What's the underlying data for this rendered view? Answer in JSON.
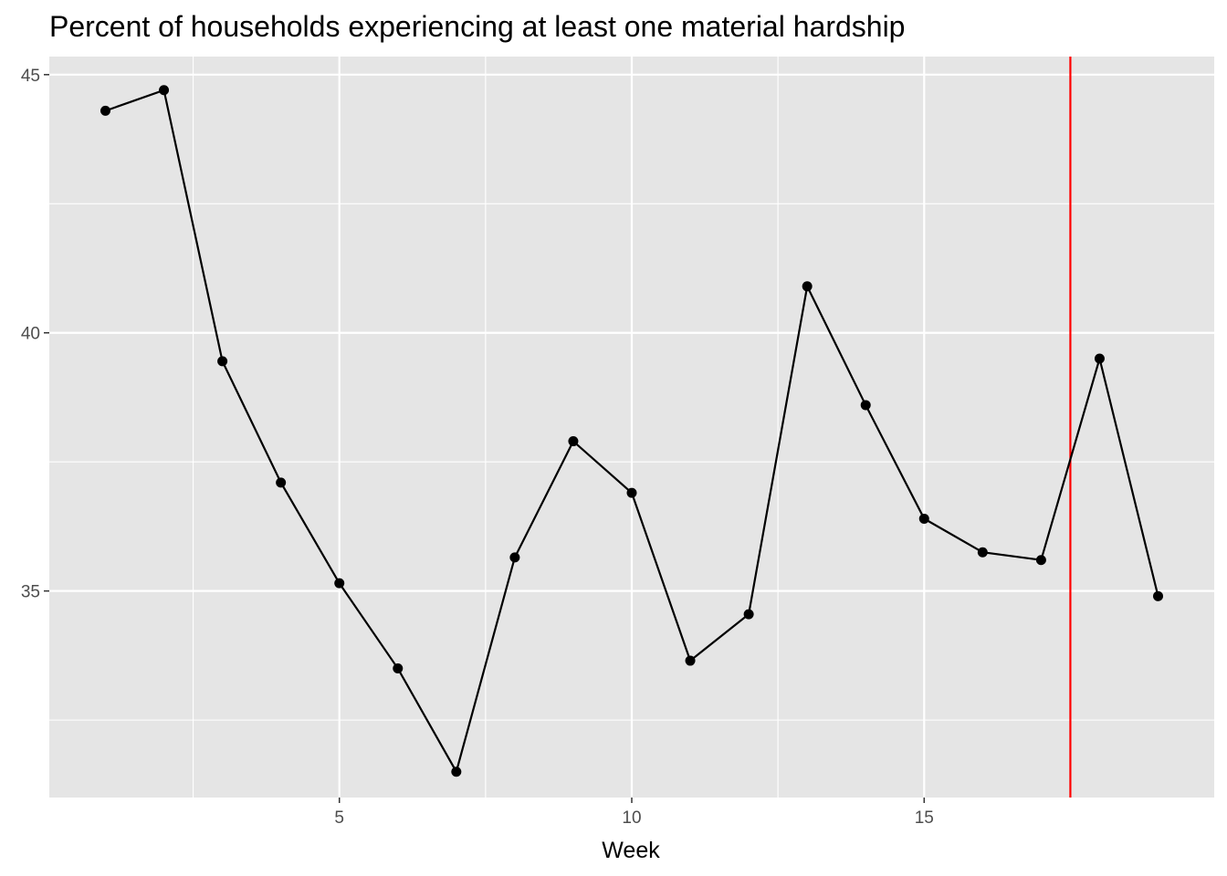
{
  "chart_data": {
    "type": "line",
    "title": "Percent of households experiencing at least one material hardship",
    "xlabel": "Week",
    "ylabel": "",
    "x": [
      1,
      2,
      3,
      4,
      5,
      6,
      7,
      8,
      9,
      10,
      11,
      12,
      13,
      14,
      15,
      16,
      17,
      18,
      19
    ],
    "series": [
      {
        "values": [
          44.3,
          44.7,
          39.45,
          37.1,
          35.15,
          33.5,
          31.5,
          35.65,
          37.9,
          36.9,
          33.65,
          34.55,
          40.9,
          38.6,
          36.4,
          35.75,
          35.6,
          39.5,
          34.9
        ],
        "color": "#000000"
      }
    ],
    "xlim": [
      0.04,
      19.96
    ],
    "ylim": [
      31.0,
      45.35
    ],
    "x_ticks": [
      5,
      10,
      15
    ],
    "x_tick_labels": [
      "5",
      "10",
      "15"
    ],
    "x_minor_ticks": [
      2.5,
      7.5,
      12.5,
      17.5
    ],
    "y_ticks": [
      35,
      40,
      45
    ],
    "y_tick_labels": [
      "35",
      "40",
      "45"
    ],
    "y_minor_ticks": [
      32.5,
      37.5,
      42.5
    ],
    "vline": {
      "x": 17.5,
      "color": "#ff0000"
    },
    "panel_color": "#e5e5e5",
    "grid": true,
    "legend": "none"
  }
}
